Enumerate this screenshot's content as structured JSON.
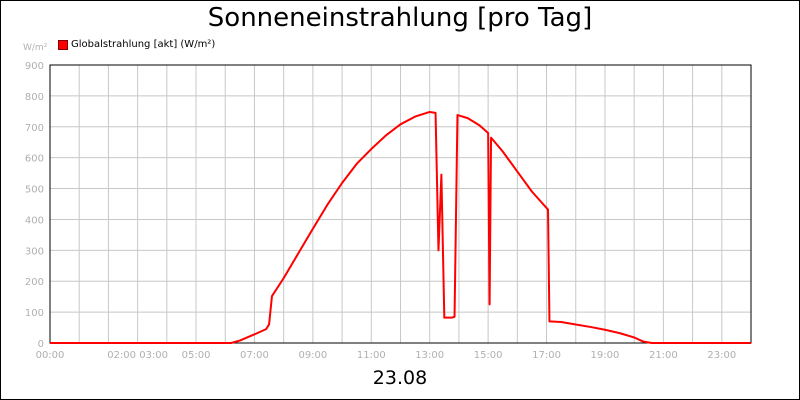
{
  "chart_data": {
    "type": "line",
    "title": "Sonneneinstrahlung [pro Tag]",
    "y_unit": "W/m²",
    "xlabel": "23.08",
    "ylim": [
      0,
      900
    ],
    "y_ticks": [
      "0",
      "100",
      "200",
      "300",
      "400",
      "500",
      "600",
      "700",
      "800",
      "900"
    ],
    "x_range_hours": [
      0,
      24
    ],
    "x_ticks": [
      {
        "h": 0,
        "label": "00:00"
      },
      {
        "h": 3,
        "label": "02:00 03:00"
      },
      {
        "h": 5,
        "label": "05:00"
      },
      {
        "h": 7,
        "label": "07:00"
      },
      {
        "h": 9,
        "label": "09:00"
      },
      {
        "h": 11,
        "label": "11:00"
      },
      {
        "h": 13,
        "label": "13:00"
      },
      {
        "h": 15,
        "label": "15:00"
      },
      {
        "h": 17,
        "label": "17:00"
      },
      {
        "h": 19,
        "label": "19:00"
      },
      {
        "h": 21,
        "label": "21:00"
      },
      {
        "h": 23,
        "label": "23:00"
      }
    ],
    "legend_position": "top-left",
    "grid": true,
    "series": [
      {
        "name": "Globalstrahlung [akt] (W/m²)",
        "color": "#ff0000",
        "points": [
          [
            0,
            0
          ],
          [
            6.2,
            0
          ],
          [
            6.5,
            8
          ],
          [
            7.0,
            28
          ],
          [
            7.4,
            45
          ],
          [
            7.5,
            60
          ],
          [
            7.6,
            152
          ],
          [
            8.0,
            210
          ],
          [
            8.5,
            290
          ],
          [
            9.0,
            370
          ],
          [
            9.5,
            448
          ],
          [
            10.0,
            518
          ],
          [
            10.5,
            580
          ],
          [
            11.0,
            628
          ],
          [
            11.5,
            672
          ],
          [
            12.0,
            708
          ],
          [
            12.5,
            733
          ],
          [
            13.0,
            748
          ],
          [
            13.2,
            745
          ],
          [
            13.3,
            300
          ],
          [
            13.4,
            545
          ],
          [
            13.5,
            82
          ],
          [
            13.75,
            82
          ],
          [
            13.85,
            85
          ],
          [
            13.95,
            738
          ],
          [
            14.3,
            728
          ],
          [
            14.7,
            705
          ],
          [
            15.0,
            680
          ],
          [
            15.05,
            125
          ],
          [
            15.1,
            665
          ],
          [
            15.5,
            620
          ],
          [
            16.0,
            555
          ],
          [
            16.5,
            490
          ],
          [
            17.05,
            432
          ],
          [
            17.1,
            70
          ],
          [
            17.5,
            68
          ],
          [
            18.0,
            60
          ],
          [
            18.5,
            52
          ],
          [
            19.0,
            43
          ],
          [
            19.5,
            32
          ],
          [
            20.0,
            18
          ],
          [
            20.3,
            5
          ],
          [
            20.6,
            0
          ],
          [
            24.0,
            0
          ]
        ]
      }
    ]
  }
}
